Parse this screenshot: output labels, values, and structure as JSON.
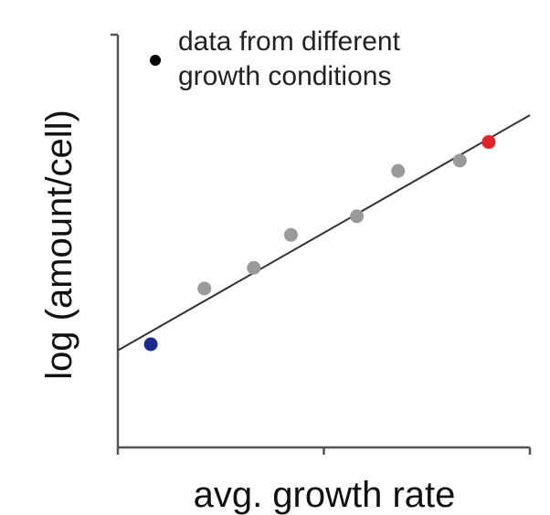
{
  "chart_data": {
    "type": "scatter",
    "title": "",
    "xlabel": "avg. growth rate",
    "ylabel": "log (amount/cell)",
    "xlim": [
      0,
      10
    ],
    "ylim": [
      0,
      10
    ],
    "grid": false,
    "tick_labels_shown": false,
    "x_ticks": [
      0,
      5,
      10
    ],
    "legend": {
      "placement": "top-left",
      "marker_color": "#000000",
      "lines": [
        "data from different",
        "growth conditions"
      ]
    },
    "fit_line": {
      "x": [
        0,
        10
      ],
      "y": [
        2.35,
        8.05
      ],
      "color": "#333333"
    },
    "series": [
      {
        "points": [
          {
            "x": 0.8,
            "y": 2.5,
            "color": "#1a2b8c"
          },
          {
            "x": 2.1,
            "y": 3.85,
            "color": "#9a9a9a"
          },
          {
            "x": 3.3,
            "y": 4.35,
            "color": "#9a9a9a"
          },
          {
            "x": 4.2,
            "y": 5.15,
            "color": "#9a9a9a"
          },
          {
            "x": 5.8,
            "y": 5.6,
            "color": "#9a9a9a"
          },
          {
            "x": 6.8,
            "y": 6.7,
            "color": "#9a9a9a"
          },
          {
            "x": 8.3,
            "y": 6.95,
            "color": "#9a9a9a"
          },
          {
            "x": 9.0,
            "y": 7.4,
            "color": "#e0242a"
          }
        ]
      }
    ]
  }
}
